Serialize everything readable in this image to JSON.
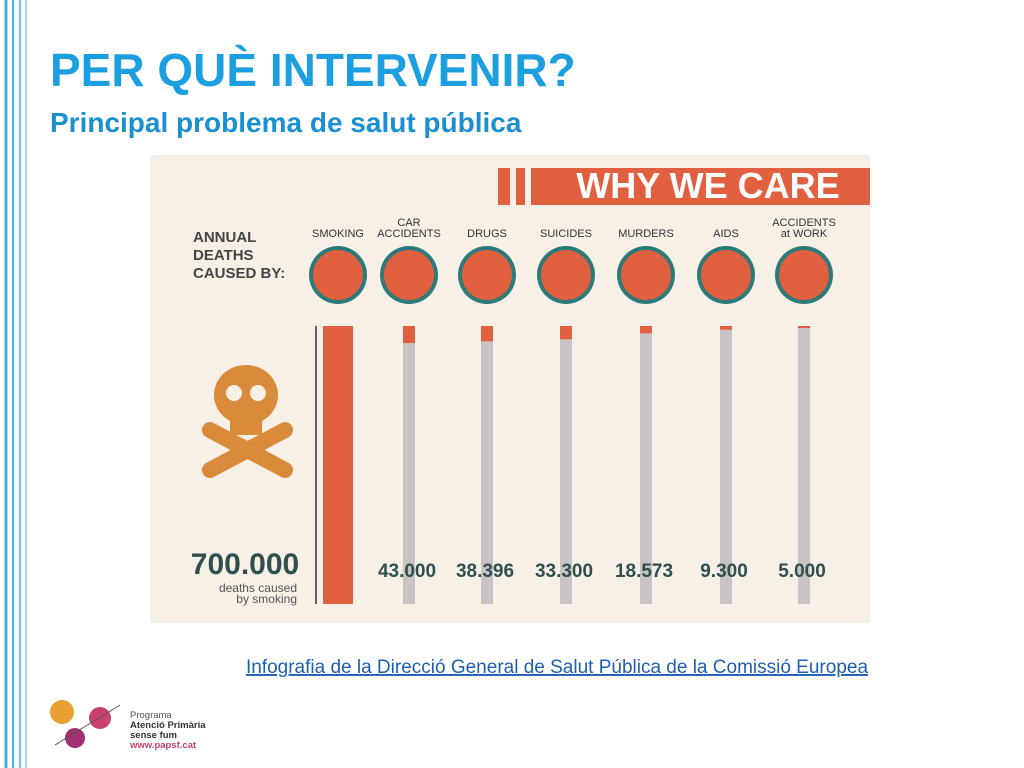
{
  "header": {
    "title": "PER QUÈ INTERVENIR?",
    "subtitle": "Principal problema de salut pública"
  },
  "infographic": {
    "banner": "WHY WE CARE",
    "intro": [
      "ANNUAL",
      "DEATHS",
      "CAUSED BY:"
    ],
    "headline_value": "700.000",
    "headline_caption": [
      "deaths caused",
      "by smoking"
    ],
    "causes": [
      {
        "label": [
          "SMOKING"
        ],
        "value": 700000,
        "value_label": null
      },
      {
        "label": [
          "CAR",
          "ACCIDENTS"
        ],
        "value": 43000,
        "value_label": "43.000"
      },
      {
        "label": [
          "DRUGS"
        ],
        "value": 38396,
        "value_label": "38.396"
      },
      {
        "label": [
          "SUICIDES"
        ],
        "value": 33300,
        "value_label": "33.300"
      },
      {
        "label": [
          "MURDERS"
        ],
        "value": 18573,
        "value_label": "18.573"
      },
      {
        "label": [
          "AIDS"
        ],
        "value": 9300,
        "value_label": "9.300"
      },
      {
        "label": [
          "ACCIDENTS",
          "at WORK"
        ],
        "value": 5000,
        "value_label": "5.000"
      }
    ]
  },
  "source_link": "Infografia  de la Direcció General de Salut Pública de la Comissió Europea",
  "logo": {
    "lines": [
      "Programa",
      "Atenció Primària",
      "sense fum",
      "www.papsf.cat"
    ]
  }
}
